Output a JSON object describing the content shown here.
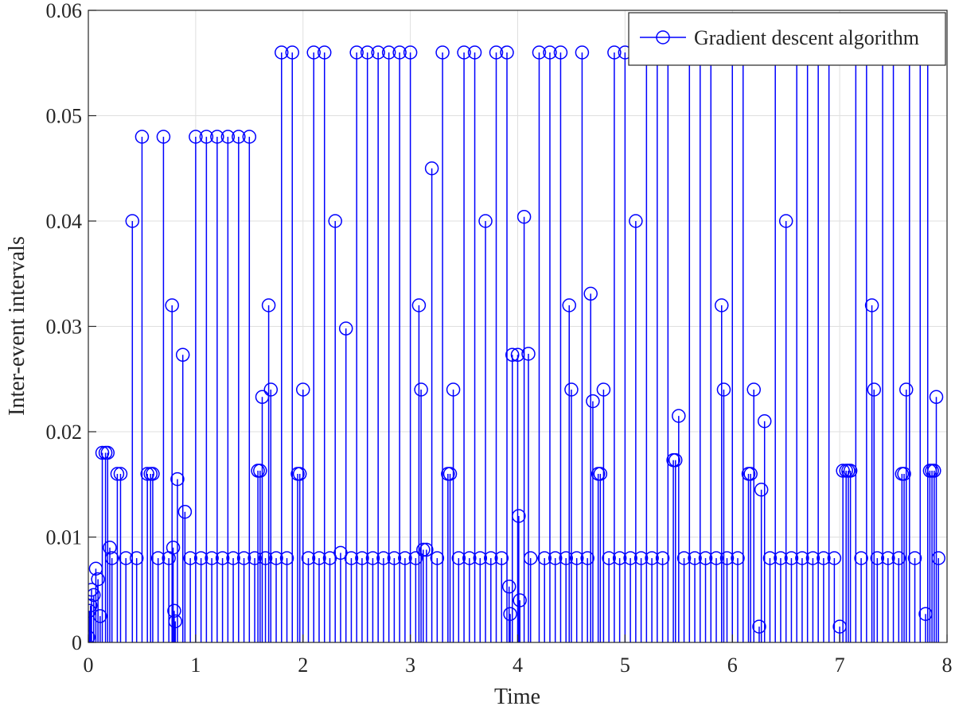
{
  "chart_data": {
    "type": "stem",
    "xlabel": "Time",
    "ylabel": "Inter-event intervals",
    "xlim": [
      0,
      8
    ],
    "ylim": [
      0,
      0.06
    ],
    "xticks": [
      0,
      1,
      2,
      3,
      4,
      5,
      6,
      7,
      8
    ],
    "yticks": [
      0,
      0.01,
      0.02,
      0.03,
      0.04,
      0.05,
      0.06
    ],
    "grid": true,
    "legend": "upper right",
    "series": [
      {
        "name": "Gradient descent algorithm",
        "color": "#0000ff",
        "x": [
          0.0,
          0.01,
          0.02,
          0.03,
          0.05,
          0.07,
          0.09,
          0.11,
          0.13,
          0.16,
          0.18,
          0.2,
          0.22,
          0.27,
          0.3,
          0.35,
          0.41,
          0.45,
          0.5,
          0.55,
          0.58,
          0.6,
          0.65,
          0.7,
          0.75,
          0.78,
          0.79,
          0.8,
          0.81,
          0.83,
          0.88,
          0.9,
          0.95,
          1.0,
          1.05,
          1.1,
          1.15,
          1.2,
          1.25,
          1.3,
          1.35,
          1.4,
          1.45,
          1.5,
          1.55,
          1.58,
          1.6,
          1.62,
          1.65,
          1.68,
          1.7,
          1.75,
          1.8,
          1.85,
          1.9,
          1.95,
          1.97,
          2.0,
          2.05,
          2.1,
          2.15,
          2.2,
          2.25,
          2.3,
          2.35,
          2.4,
          2.45,
          2.5,
          2.55,
          2.6,
          2.65,
          2.7,
          2.75,
          2.8,
          2.85,
          2.9,
          2.95,
          3.0,
          3.05,
          3.08,
          3.1,
          3.12,
          3.15,
          3.2,
          3.25,
          3.3,
          3.35,
          3.37,
          3.4,
          3.45,
          3.5,
          3.55,
          3.6,
          3.65,
          3.7,
          3.75,
          3.8,
          3.85,
          3.9,
          3.92,
          3.93,
          3.95,
          4.0,
          4.01,
          4.02,
          4.06,
          4.1,
          4.12,
          4.2,
          4.25,
          4.3,
          4.35,
          4.4,
          4.45,
          4.48,
          4.5,
          4.55,
          4.6,
          4.65,
          4.68,
          4.7,
          4.75,
          4.77,
          4.8,
          4.85,
          4.9,
          4.95,
          5.0,
          5.05,
          5.1,
          5.15,
          5.2,
          5.25,
          5.3,
          5.35,
          5.4,
          5.45,
          5.47,
          5.5,
          5.55,
          5.6,
          5.65,
          5.7,
          5.75,
          5.8,
          5.85,
          5.9,
          5.92,
          5.95,
          6.0,
          6.05,
          6.1,
          6.15,
          6.17,
          6.2,
          6.25,
          6.27,
          6.3,
          6.35,
          6.4,
          6.45,
          6.5,
          6.55,
          6.6,
          6.65,
          6.7,
          6.75,
          6.8,
          6.85,
          6.9,
          6.95,
          7.0,
          7.03,
          7.06,
          7.08,
          7.1,
          7.15,
          7.2,
          7.25,
          7.3,
          7.32,
          7.35,
          7.4,
          7.45,
          7.5,
          7.55,
          7.58,
          7.6,
          7.62,
          7.65,
          7.7,
          7.75,
          7.8,
          7.82,
          7.84,
          7.86,
          7.88,
          7.9,
          7.92
        ],
        "values": [
          0.0005,
          0.003,
          0.0035,
          0.005,
          0.0045,
          0.007,
          0.006,
          0.0025,
          0.018,
          0.018,
          0.018,
          0.009,
          0.008,
          0.016,
          0.016,
          0.008,
          0.04,
          0.008,
          0.048,
          0.016,
          0.016,
          0.016,
          0.008,
          0.048,
          0.008,
          0.032,
          0.009,
          0.003,
          0.002,
          0.0155,
          0.0273,
          0.0124,
          0.008,
          0.048,
          0.008,
          0.048,
          0.008,
          0.048,
          0.008,
          0.048,
          0.008,
          0.048,
          0.008,
          0.048,
          0.008,
          0.0163,
          0.0163,
          0.0233,
          0.008,
          0.032,
          0.024,
          0.008,
          0.056,
          0.008,
          0.056,
          0.016,
          0.016,
          0.024,
          0.008,
          0.056,
          0.008,
          0.056,
          0.008,
          0.04,
          0.0085,
          0.0298,
          0.008,
          0.056,
          0.008,
          0.056,
          0.008,
          0.056,
          0.008,
          0.056,
          0.008,
          0.056,
          0.008,
          0.056,
          0.008,
          0.032,
          0.024,
          0.0088,
          0.0088,
          0.045,
          0.008,
          0.056,
          0.016,
          0.016,
          0.024,
          0.008,
          0.056,
          0.008,
          0.056,
          0.008,
          0.04,
          0.008,
          0.056,
          0.008,
          0.056,
          0.0053,
          0.0027,
          0.0273,
          0.0273,
          0.012,
          0.004,
          0.0404,
          0.0274,
          0.008,
          0.056,
          0.008,
          0.056,
          0.008,
          0.056,
          0.008,
          0.032,
          0.024,
          0.008,
          0.056,
          0.008,
          0.0331,
          0.0229,
          0.016,
          0.016,
          0.024,
          0.008,
          0.056,
          0.008,
          0.056,
          0.008,
          0.04,
          0.008,
          0.056,
          0.008,
          0.056,
          0.008,
          0.056,
          0.0173,
          0.0173,
          0.0215,
          0.008,
          0.056,
          0.008,
          0.056,
          0.008,
          0.056,
          0.008,
          0.032,
          0.024,
          0.008,
          0.056,
          0.008,
          0.056,
          0.016,
          0.016,
          0.024,
          0.0015,
          0.0145,
          0.021,
          0.008,
          0.056,
          0.008,
          0.04,
          0.008,
          0.056,
          0.008,
          0.056,
          0.008,
          0.056,
          0.008,
          0.056,
          0.008,
          0.0015,
          0.0163,
          0.0163,
          0.0163,
          0.0163,
          0.056,
          0.008,
          0.056,
          0.032,
          0.024,
          0.008,
          0.056,
          0.008,
          0.056,
          0.008,
          0.016,
          0.016,
          0.024,
          0.056,
          0.008,
          0.056,
          0.0027,
          0.056,
          0.0163,
          0.0163,
          0.0163,
          0.0233,
          0.008
        ]
      }
    ]
  }
}
